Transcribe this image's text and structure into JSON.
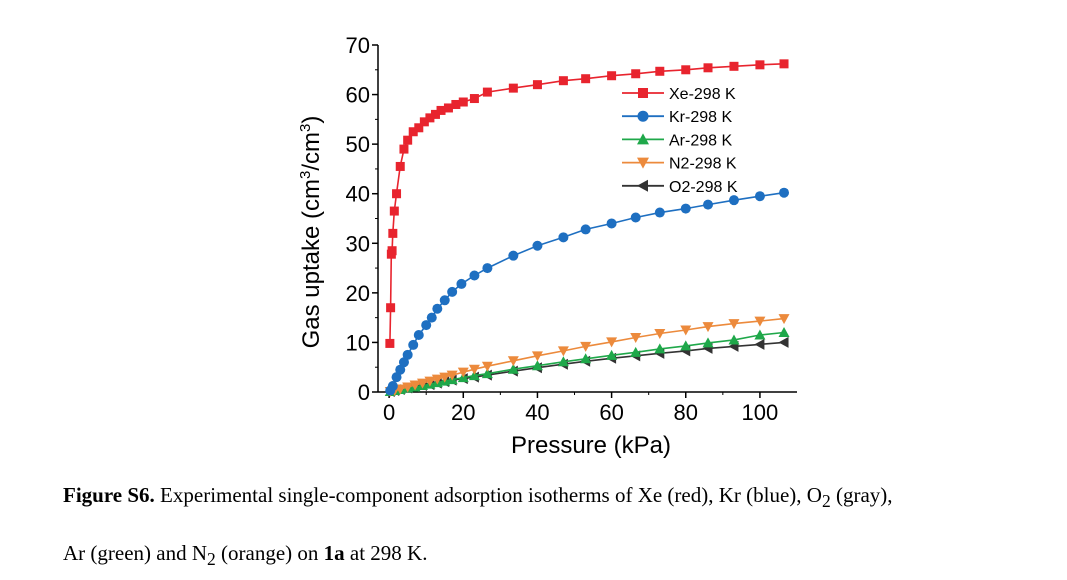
{
  "chart_data": {
    "type": "line",
    "xlabel": "Pressure (kPa)",
    "ylabel_main": "Gas uptake (cm",
    "ylabel_sup1": "3",
    "ylabel_mid": "/cm",
    "ylabel_sup2": "3",
    "ylabel_end": ")",
    "xlim": [
      -3,
      110
    ],
    "ylim": [
      0,
      70
    ],
    "xticks": [
      0,
      20,
      40,
      60,
      80,
      100
    ],
    "yticks": [
      0,
      10,
      20,
      30,
      40,
      50,
      60,
      70
    ],
    "legend_position": "top-right",
    "series": [
      {
        "name": "Xe-298 K",
        "color": "#e8242e",
        "marker": "square",
        "x": [
          0.2,
          0.4,
          0.6,
          0.8,
          1.0,
          1.4,
          2.0,
          3.0,
          4.0,
          5.0,
          6.5,
          8.0,
          9.5,
          11,
          12.5,
          14,
          16,
          18,
          20,
          23,
          26.5,
          33.5,
          40,
          47,
          53,
          60,
          66.5,
          73,
          80,
          86,
          93,
          100,
          106.5
        ],
        "y": [
          9.8,
          17.0,
          27.8,
          28.5,
          32.0,
          36.5,
          40.0,
          45.5,
          49.0,
          50.8,
          52.5,
          53.3,
          54.5,
          55.3,
          56.0,
          56.8,
          57.3,
          58.0,
          58.5,
          59.2,
          60.5,
          61.3,
          62.0,
          62.8,
          63.2,
          63.8,
          64.2,
          64.7,
          65.0,
          65.4,
          65.7,
          66.0,
          66.2
        ]
      },
      {
        "name": "Kr-298 K",
        "color": "#1e6fc1",
        "marker": "circle",
        "x": [
          0.3,
          1.0,
          2.0,
          3.0,
          4.0,
          5.0,
          6.5,
          8.0,
          10,
          11.5,
          13,
          15,
          17,
          19.5,
          23,
          26.5,
          33.5,
          40,
          47,
          53,
          60,
          66.5,
          73,
          80,
          86,
          93,
          100,
          106.5
        ],
        "y": [
          0.3,
          1.2,
          3.0,
          4.5,
          6.0,
          7.5,
          9.5,
          11.5,
          13.5,
          15.0,
          16.8,
          18.5,
          20.2,
          21.8,
          23.5,
          25.0,
          27.5,
          29.5,
          31.2,
          32.8,
          34.0,
          35.2,
          36.2,
          37.0,
          37.8,
          38.7,
          39.5,
          40.2
        ]
      },
      {
        "name": "Ar-298 K",
        "color": "#1fa84a",
        "marker": "triangle-up",
        "x": [
          0.3,
          1.5,
          3,
          5,
          7,
          9,
          11,
          13,
          15,
          17,
          20,
          23,
          26.5,
          33.5,
          40,
          47,
          53,
          60,
          66.5,
          73,
          80,
          86,
          93,
          100,
          106.5
        ],
        "y": [
          0.1,
          0.3,
          0.5,
          0.8,
          1.0,
          1.3,
          1.6,
          1.9,
          2.2,
          2.5,
          2.9,
          3.3,
          3.7,
          4.6,
          5.3,
          6.1,
          6.7,
          7.4,
          8.0,
          8.7,
          9.3,
          9.9,
          10.5,
          11.5,
          12.0
        ]
      },
      {
        "name": "N2-298 K",
        "color": "#ec8a3c",
        "marker": "triangle-down",
        "x": [
          0.3,
          1.5,
          3,
          5,
          7,
          9,
          11,
          13,
          15,
          17,
          20,
          23,
          26.5,
          33.5,
          40,
          47,
          53,
          60,
          66.5,
          73,
          80,
          86,
          93,
          100,
          106.5
        ],
        "y": [
          0.1,
          0.3,
          0.6,
          1.0,
          1.4,
          1.8,
          2.2,
          2.6,
          3.0,
          3.4,
          4.0,
          4.6,
          5.2,
          6.3,
          7.3,
          8.3,
          9.2,
          10.1,
          11.0,
          11.8,
          12.5,
          13.2,
          13.8,
          14.3,
          14.8
        ]
      },
      {
        "name": "O2-298 K",
        "color": "#333333",
        "marker": "triangle-left",
        "x": [
          0.3,
          1.5,
          3,
          5,
          7,
          9,
          11,
          13,
          15,
          17,
          20,
          23,
          26.5,
          33.5,
          40,
          47,
          53,
          60,
          66.5,
          73,
          80,
          86,
          93,
          100,
          106.5
        ],
        "y": [
          0.1,
          0.3,
          0.5,
          0.8,
          1.0,
          1.3,
          1.5,
          1.8,
          2.1,
          2.4,
          2.7,
          3.0,
          3.4,
          4.2,
          4.9,
          5.6,
          6.2,
          6.8,
          7.3,
          7.8,
          8.3,
          8.8,
          9.2,
          9.6,
          10.0
        ]
      }
    ]
  },
  "caption": {
    "label": "Figure S6.",
    "text1": " Experimental single-component adsorption isotherms of Xe (red), Kr (blue), O",
    "sub_o2": "2",
    "text2": " (gray),",
    "text3": "Ar (green) and N",
    "sub_n2": "2",
    "text4": " (orange) on ",
    "compound": "1a",
    "text5": " at 298 K."
  }
}
